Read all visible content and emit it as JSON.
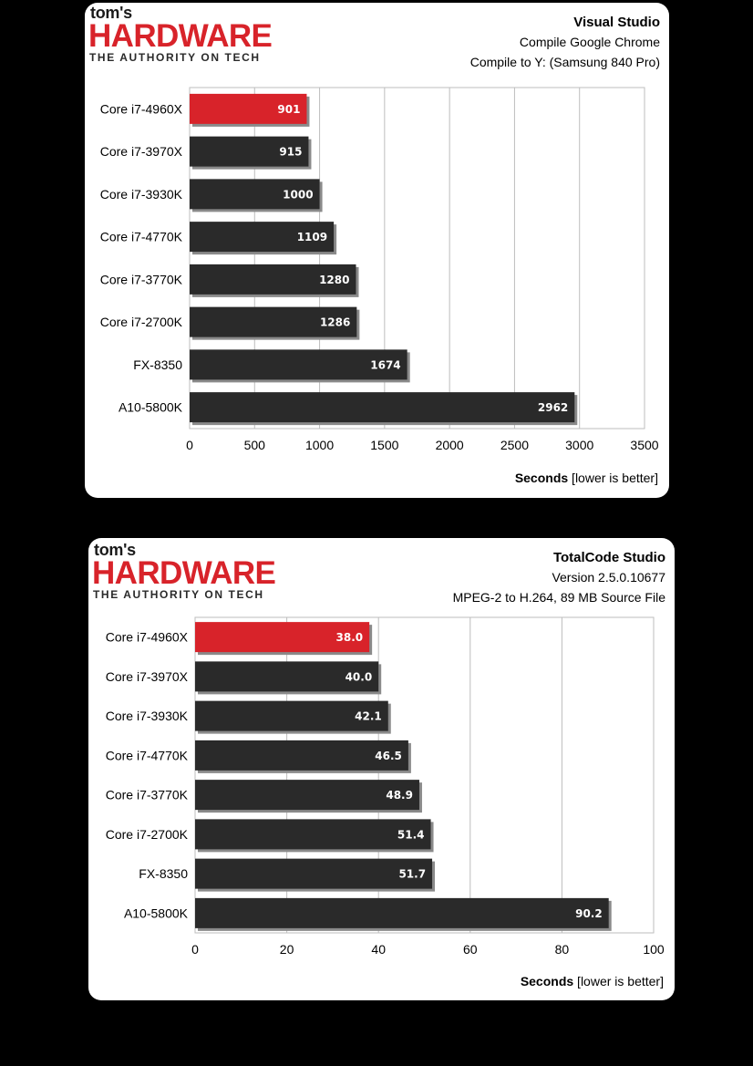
{
  "charts": [
    {
      "logo": {
        "toms": "tom's",
        "main": "HARDWARE",
        "tagline": "THE AUTHORITY ON TECH"
      },
      "title": "Visual Studio",
      "subtitles": [
        "Compile Google Chrome",
        "Compile to Y: (Samsung 840 Pro)"
      ],
      "xlabel_bold": "Seconds",
      "xlabel_rest": " [lower is better]",
      "highlight_color": "#d8232a",
      "bar_color": "#2a2a2a"
    },
    {
      "logo": {
        "toms": "tom's",
        "main": "HARDWARE",
        "tagline": "THE AUTHORITY ON TECH"
      },
      "title": "TotalCode Studio",
      "subtitles": [
        "Version 2.5.0.10677",
        "MPEG-2 to H.264, 89 MB Source File"
      ],
      "xlabel_bold": "Seconds",
      "xlabel_rest": " [lower is better]",
      "highlight_color": "#d8232a",
      "bar_color": "#2a2a2a"
    }
  ],
  "chart_data": [
    {
      "type": "bar",
      "orientation": "horizontal",
      "title": "Visual Studio",
      "subtitle": "Compile Google Chrome / Compile to Y: (Samsung 840 Pro)",
      "xlabel": "Seconds [lower is better]",
      "categories": [
        "Core i7-4960X",
        "Core i7-3970X",
        "Core i7-3930K",
        "Core i7-4770K",
        "Core i7-3770K",
        "Core i7-2700K",
        "FX-8350",
        "A10-5800K"
      ],
      "values": [
        901,
        915,
        1000,
        1109,
        1280,
        1286,
        1674,
        2962
      ],
      "value_labels": [
        "901",
        "915",
        "1000",
        "1109",
        "1280",
        "1286",
        "1674",
        "2962"
      ],
      "xlim": [
        0,
        3500
      ],
      "xticks": [
        0,
        500,
        1000,
        1500,
        2000,
        2500,
        3000,
        3500
      ],
      "xtick_labels": [
        "0",
        "500",
        "1000",
        "1500",
        "2000",
        "2500",
        "3000",
        "3500"
      ],
      "highlight_index": 0,
      "grid": true
    },
    {
      "type": "bar",
      "orientation": "horizontal",
      "title": "TotalCode Studio",
      "subtitle": "Version 2.5.0.10677 / MPEG-2 to H.264, 89 MB Source File",
      "xlabel": "Seconds [lower is better]",
      "categories": [
        "Core i7-4960X",
        "Core i7-3970X",
        "Core i7-3930K",
        "Core i7-4770K",
        "Core i7-3770K",
        "Core i7-2700K",
        "FX-8350",
        "A10-5800K"
      ],
      "values": [
        38.0,
        40.0,
        42.1,
        46.5,
        48.9,
        51.4,
        51.7,
        90.2
      ],
      "value_labels": [
        "38.0",
        "40.0",
        "42.1",
        "46.5",
        "48.9",
        "51.4",
        "51.7",
        "90.2"
      ],
      "xlim": [
        0,
        100
      ],
      "xticks": [
        0,
        20,
        40,
        60,
        80,
        100
      ],
      "xtick_labels": [
        "0",
        "20",
        "40",
        "60",
        "80",
        "100"
      ],
      "highlight_index": 0,
      "grid": true
    }
  ]
}
